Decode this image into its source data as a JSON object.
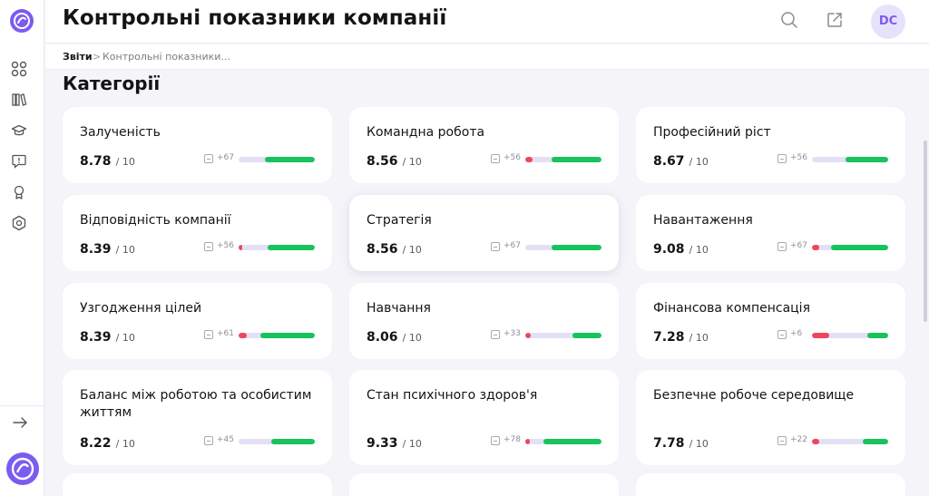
{
  "header": {
    "title": "Контрольні показники компанії",
    "avatar_initials": "DC"
  },
  "breadcrumb": {
    "root": "Звіти",
    "separator": ">",
    "current": "Контрольні показники..."
  },
  "section": {
    "title": "Категорії"
  },
  "sidebar": {
    "icons": [
      "dashboard-icon",
      "library-icon",
      "graduation-cap-icon",
      "feedback-icon",
      "award-icon",
      "settings-icon"
    ],
    "expand_icon": "arrow-right-icon"
  },
  "colors": {
    "accent": "#7b5cf0",
    "positive": "#18c35c",
    "negative": "#f0455d",
    "neutral": "#e3e0f6"
  },
  "score_max_label": "/ 10",
  "categories": [
    {
      "name": "Залученість",
      "score": "8.78",
      "count": "+67",
      "negative": 0.0,
      "neutral": 0.34,
      "positive": 0.66
    },
    {
      "name": "Командна робота",
      "score": "8.56",
      "count": "+56",
      "negative": 0.1,
      "neutral": 0.24,
      "positive": 0.66
    },
    {
      "name": "Професійний ріст",
      "score": "8.67",
      "count": "+56",
      "negative": 0.0,
      "neutral": 0.44,
      "positive": 0.56
    },
    {
      "name": "Відповідність компанії",
      "score": "8.39",
      "count": "+56",
      "negative": 0.05,
      "neutral": 0.33,
      "positive": 0.62
    },
    {
      "name": "Стратегія",
      "score": "8.56",
      "count": "+67",
      "negative": 0.0,
      "neutral": 0.34,
      "positive": 0.66
    },
    {
      "name": "Навантаження",
      "score": "9.08",
      "count": "+67",
      "negative": 0.1,
      "neutral": 0.15,
      "positive": 0.75
    },
    {
      "name": "Узгодження цілей",
      "score": "8.39",
      "count": "+61",
      "negative": 0.11,
      "neutral": 0.17,
      "positive": 0.72
    },
    {
      "name": "Навчання",
      "score": "8.06",
      "count": "+33",
      "negative": 0.07,
      "neutral": 0.55,
      "positive": 0.38
    },
    {
      "name": "Фінансова компенсація",
      "score": "7.28",
      "count": "+6",
      "negative": 0.23,
      "neutral": 0.5,
      "positive": 0.27
    },
    {
      "name": "Баланс між роботою та особистим життям",
      "score": "8.22",
      "count": "+45",
      "negative": 0.0,
      "neutral": 0.43,
      "positive": 0.57
    },
    {
      "name": "Стан психічного здоров'я",
      "score": "9.33",
      "count": "+78",
      "negative": 0.06,
      "neutral": 0.18,
      "positive": 0.76
    },
    {
      "name": "Безпечне робоче середовище",
      "score": "7.78",
      "count": "+22",
      "negative": 0.1,
      "neutral": 0.57,
      "positive": 0.33
    }
  ]
}
